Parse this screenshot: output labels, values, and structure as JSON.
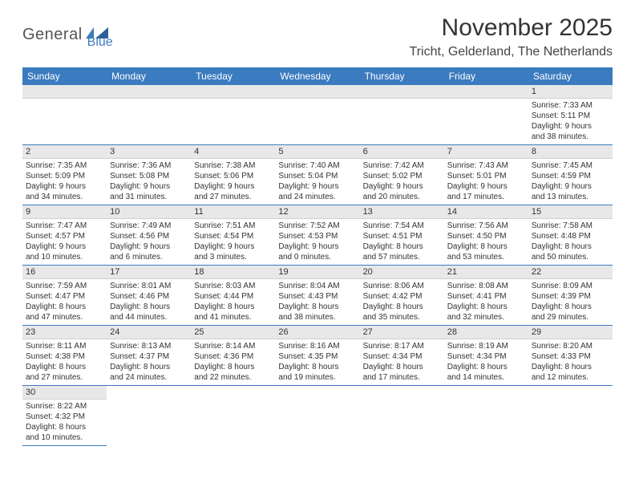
{
  "logo": {
    "general": "General",
    "blue": "Blue"
  },
  "title": "November 2025",
  "location": "Tricht, Gelderland, The Netherlands",
  "headers": {
    "sun": "Sunday",
    "mon": "Monday",
    "tue": "Tuesday",
    "wed": "Wednesday",
    "thu": "Thursday",
    "fri": "Friday",
    "sat": "Saturday"
  },
  "colors": {
    "accent": "#3b7bbf",
    "header_bg": "#3b7bbf",
    "daynum_bg": "#e8e8e8"
  },
  "days": {
    "d1": {
      "n": "1",
      "sr": "Sunrise: 7:33 AM",
      "ss": "Sunset: 5:11 PM",
      "dl1": "Daylight: 9 hours",
      "dl2": "and 38 minutes."
    },
    "d2": {
      "n": "2",
      "sr": "Sunrise: 7:35 AM",
      "ss": "Sunset: 5:09 PM",
      "dl1": "Daylight: 9 hours",
      "dl2": "and 34 minutes."
    },
    "d3": {
      "n": "3",
      "sr": "Sunrise: 7:36 AM",
      "ss": "Sunset: 5:08 PM",
      "dl1": "Daylight: 9 hours",
      "dl2": "and 31 minutes."
    },
    "d4": {
      "n": "4",
      "sr": "Sunrise: 7:38 AM",
      "ss": "Sunset: 5:06 PM",
      "dl1": "Daylight: 9 hours",
      "dl2": "and 27 minutes."
    },
    "d5": {
      "n": "5",
      "sr": "Sunrise: 7:40 AM",
      "ss": "Sunset: 5:04 PM",
      "dl1": "Daylight: 9 hours",
      "dl2": "and 24 minutes."
    },
    "d6": {
      "n": "6",
      "sr": "Sunrise: 7:42 AM",
      "ss": "Sunset: 5:02 PM",
      "dl1": "Daylight: 9 hours",
      "dl2": "and 20 minutes."
    },
    "d7": {
      "n": "7",
      "sr": "Sunrise: 7:43 AM",
      "ss": "Sunset: 5:01 PM",
      "dl1": "Daylight: 9 hours",
      "dl2": "and 17 minutes."
    },
    "d8": {
      "n": "8",
      "sr": "Sunrise: 7:45 AM",
      "ss": "Sunset: 4:59 PM",
      "dl1": "Daylight: 9 hours",
      "dl2": "and 13 minutes."
    },
    "d9": {
      "n": "9",
      "sr": "Sunrise: 7:47 AM",
      "ss": "Sunset: 4:57 PM",
      "dl1": "Daylight: 9 hours",
      "dl2": "and 10 minutes."
    },
    "d10": {
      "n": "10",
      "sr": "Sunrise: 7:49 AM",
      "ss": "Sunset: 4:56 PM",
      "dl1": "Daylight: 9 hours",
      "dl2": "and 6 minutes."
    },
    "d11": {
      "n": "11",
      "sr": "Sunrise: 7:51 AM",
      "ss": "Sunset: 4:54 PM",
      "dl1": "Daylight: 9 hours",
      "dl2": "and 3 minutes."
    },
    "d12": {
      "n": "12",
      "sr": "Sunrise: 7:52 AM",
      "ss": "Sunset: 4:53 PM",
      "dl1": "Daylight: 9 hours",
      "dl2": "and 0 minutes."
    },
    "d13": {
      "n": "13",
      "sr": "Sunrise: 7:54 AM",
      "ss": "Sunset: 4:51 PM",
      "dl1": "Daylight: 8 hours",
      "dl2": "and 57 minutes."
    },
    "d14": {
      "n": "14",
      "sr": "Sunrise: 7:56 AM",
      "ss": "Sunset: 4:50 PM",
      "dl1": "Daylight: 8 hours",
      "dl2": "and 53 minutes."
    },
    "d15": {
      "n": "15",
      "sr": "Sunrise: 7:58 AM",
      "ss": "Sunset: 4:48 PM",
      "dl1": "Daylight: 8 hours",
      "dl2": "and 50 minutes."
    },
    "d16": {
      "n": "16",
      "sr": "Sunrise: 7:59 AM",
      "ss": "Sunset: 4:47 PM",
      "dl1": "Daylight: 8 hours",
      "dl2": "and 47 minutes."
    },
    "d17": {
      "n": "17",
      "sr": "Sunrise: 8:01 AM",
      "ss": "Sunset: 4:46 PM",
      "dl1": "Daylight: 8 hours",
      "dl2": "and 44 minutes."
    },
    "d18": {
      "n": "18",
      "sr": "Sunrise: 8:03 AM",
      "ss": "Sunset: 4:44 PM",
      "dl1": "Daylight: 8 hours",
      "dl2": "and 41 minutes."
    },
    "d19": {
      "n": "19",
      "sr": "Sunrise: 8:04 AM",
      "ss": "Sunset: 4:43 PM",
      "dl1": "Daylight: 8 hours",
      "dl2": "and 38 minutes."
    },
    "d20": {
      "n": "20",
      "sr": "Sunrise: 8:06 AM",
      "ss": "Sunset: 4:42 PM",
      "dl1": "Daylight: 8 hours",
      "dl2": "and 35 minutes."
    },
    "d21": {
      "n": "21",
      "sr": "Sunrise: 8:08 AM",
      "ss": "Sunset: 4:41 PM",
      "dl1": "Daylight: 8 hours",
      "dl2": "and 32 minutes."
    },
    "d22": {
      "n": "22",
      "sr": "Sunrise: 8:09 AM",
      "ss": "Sunset: 4:39 PM",
      "dl1": "Daylight: 8 hours",
      "dl2": "and 29 minutes."
    },
    "d23": {
      "n": "23",
      "sr": "Sunrise: 8:11 AM",
      "ss": "Sunset: 4:38 PM",
      "dl1": "Daylight: 8 hours",
      "dl2": "and 27 minutes."
    },
    "d24": {
      "n": "24",
      "sr": "Sunrise: 8:13 AM",
      "ss": "Sunset: 4:37 PM",
      "dl1": "Daylight: 8 hours",
      "dl2": "and 24 minutes."
    },
    "d25": {
      "n": "25",
      "sr": "Sunrise: 8:14 AM",
      "ss": "Sunset: 4:36 PM",
      "dl1": "Daylight: 8 hours",
      "dl2": "and 22 minutes."
    },
    "d26": {
      "n": "26",
      "sr": "Sunrise: 8:16 AM",
      "ss": "Sunset: 4:35 PM",
      "dl1": "Daylight: 8 hours",
      "dl2": "and 19 minutes."
    },
    "d27": {
      "n": "27",
      "sr": "Sunrise: 8:17 AM",
      "ss": "Sunset: 4:34 PM",
      "dl1": "Daylight: 8 hours",
      "dl2": "and 17 minutes."
    },
    "d28": {
      "n": "28",
      "sr": "Sunrise: 8:19 AM",
      "ss": "Sunset: 4:34 PM",
      "dl1": "Daylight: 8 hours",
      "dl2": "and 14 minutes."
    },
    "d29": {
      "n": "29",
      "sr": "Sunrise: 8:20 AM",
      "ss": "Sunset: 4:33 PM",
      "dl1": "Daylight: 8 hours",
      "dl2": "and 12 minutes."
    },
    "d30": {
      "n": "30",
      "sr": "Sunrise: 8:22 AM",
      "ss": "Sunset: 4:32 PM",
      "dl1": "Daylight: 8 hours",
      "dl2": "and 10 minutes."
    }
  }
}
